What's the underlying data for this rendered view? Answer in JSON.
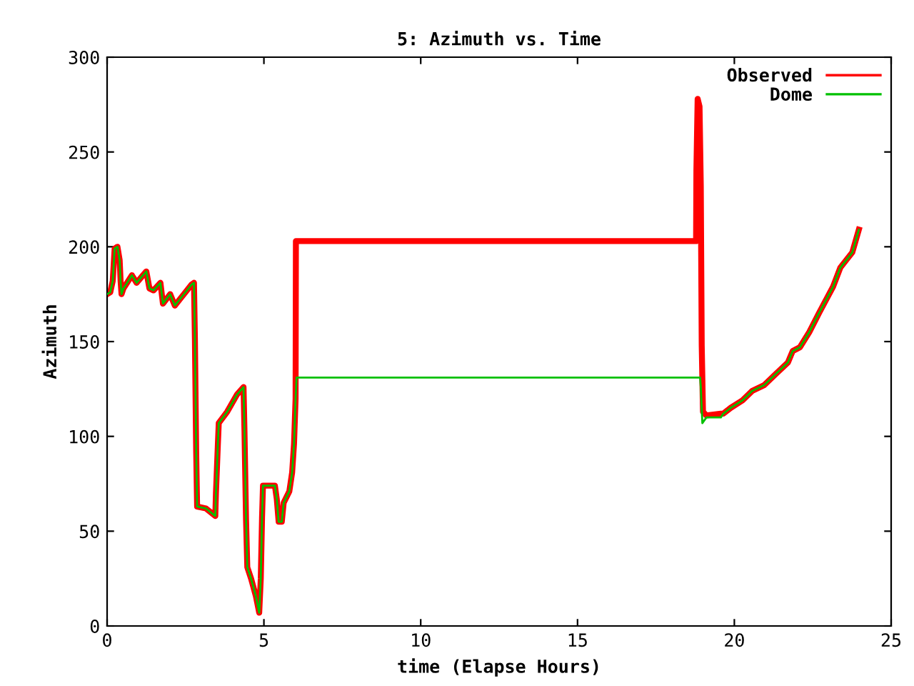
{
  "chart_data": {
    "type": "line",
    "title": "5: Azimuth vs. Time",
    "xlabel": "time (Elapse Hours)",
    "ylabel": "Azimuth",
    "xlim": [
      0,
      25
    ],
    "xticks": [
      0,
      5,
      10,
      15,
      20,
      25
    ],
    "ylim": [
      0,
      300
    ],
    "yticks": [
      0,
      50,
      100,
      150,
      200,
      250,
      300
    ],
    "grid": false,
    "legend": "top right",
    "marker": "none",
    "line_style": "solid",
    "series": [
      {
        "name": "Observed",
        "color": "#ff0000",
        "x": [
          0,
          0.1,
          0.18,
          0.24,
          0.33,
          0.4,
          0.43,
          0.46,
          0.52,
          0.79,
          0.94,
          1.25,
          1.35,
          1.48,
          1.7,
          1.78,
          2.01,
          2.16,
          2.69,
          2.77,
          2.8,
          2.84,
          2.87,
          3.15,
          3.45,
          3.47,
          3.53,
          3.56,
          3.83,
          4.14,
          4.35,
          4.38,
          4.43,
          4.47,
          4.59,
          4.74,
          4.85,
          4.9,
          4.94,
          4.97,
          5.35,
          5.41,
          5.47,
          5.57,
          5.63,
          5.81,
          5.9,
          5.96,
          6.01,
          6.02,
          18.78,
          18.79,
          18.83,
          18.89,
          18.93,
          18.96,
          19.0,
          19.11,
          19.57,
          19.65,
          19.88,
          20.26,
          20.57,
          20.95,
          21.33,
          21.71,
          21.86,
          22.09,
          22.39,
          22.7,
          23.15,
          23.38,
          23.76,
          23.97
        ],
        "values": [
          175,
          176,
          182,
          199,
          200,
          193,
          182,
          175,
          178,
          185,
          181,
          187,
          178,
          177,
          181,
          170,
          175,
          169,
          180,
          181,
          151,
          92,
          63,
          62,
          58,
          70,
          95,
          107,
          113,
          122,
          126,
          103,
          56,
          31,
          25,
          16,
          7,
          25,
          57,
          74,
          74,
          67,
          55,
          55,
          65,
          71,
          81,
          96,
          120,
          203,
          203,
          240,
          278,
          274,
          232,
          148,
          113,
          111,
          112,
          112,
          115,
          119,
          124,
          127,
          133,
          139,
          145,
          147,
          155,
          165,
          179,
          189,
          197,
          209
        ]
      },
      {
        "name": "Dome",
        "color": "#00c000",
        "x": [
          0,
          0.1,
          0.18,
          0.24,
          0.33,
          0.4,
          0.43,
          0.46,
          0.52,
          0.79,
          0.94,
          1.25,
          1.35,
          1.48,
          1.7,
          1.78,
          2.01,
          2.16,
          2.69,
          2.77,
          2.8,
          2.84,
          2.87,
          3.15,
          3.45,
          3.47,
          3.53,
          3.56,
          3.83,
          4.14,
          4.35,
          4.38,
          4.43,
          4.47,
          4.59,
          4.74,
          4.85,
          4.9,
          4.94,
          4.97,
          5.35,
          5.41,
          5.47,
          5.57,
          5.63,
          5.81,
          5.9,
          5.96,
          6.01,
          6.04,
          18.91,
          18.93,
          18.98,
          19.11,
          19.57,
          19.65,
          19.88,
          20.26,
          20.57,
          20.95,
          21.33,
          21.71,
          21.86,
          22.09,
          22.39,
          22.7,
          23.15,
          23.38,
          23.76,
          23.97
        ],
        "values": [
          175,
          176,
          182,
          199,
          200,
          193,
          182,
          175,
          178,
          185,
          181,
          187,
          178,
          177,
          181,
          170,
          175,
          169,
          180,
          181,
          151,
          92,
          63,
          62,
          58,
          70,
          95,
          107,
          113,
          122,
          126,
          103,
          56,
          31,
          25,
          16,
          7,
          25,
          57,
          74,
          74,
          67,
          55,
          55,
          65,
          71,
          81,
          96,
          120,
          131,
          131,
          126,
          107,
          110,
          110,
          112,
          115,
          119,
          124,
          127,
          133,
          139,
          145,
          147,
          155,
          165,
          179,
          189,
          197,
          209
        ]
      }
    ]
  }
}
